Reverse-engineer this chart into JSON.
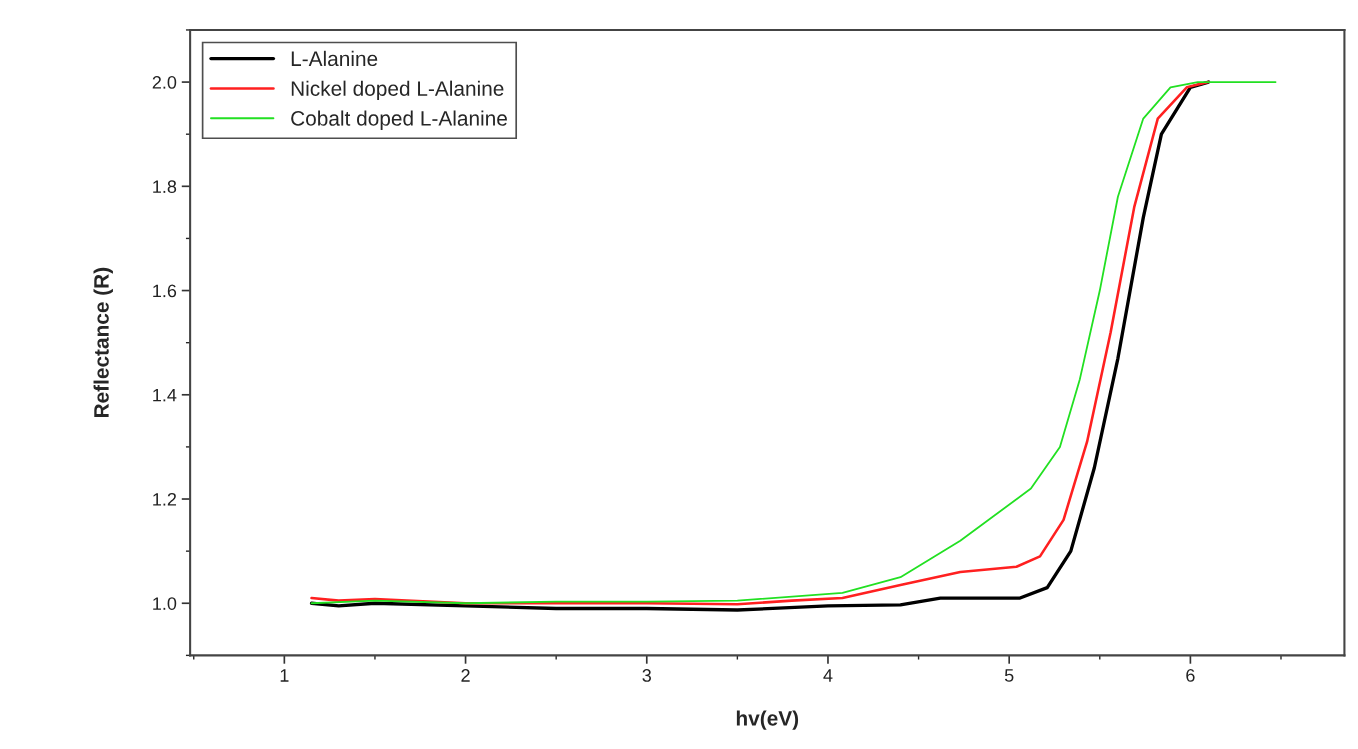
{
  "chart_data": {
    "type": "line",
    "xlabel": "hv(eV)",
    "ylabel": "Reflectance (R)",
    "xlim": [
      0.48,
      6.85
    ],
    "ylim": [
      0.9,
      2.1
    ],
    "xticks": [
      1,
      2,
      3,
      4,
      5,
      6
    ],
    "yticks": [
      {
        "value": 1.0,
        "label": "1.0"
      },
      {
        "value": 1.2,
        "label": "1.2"
      },
      {
        "value": 1.4,
        "label": "1.4"
      },
      {
        "value": 1.6,
        "label": "1.6"
      },
      {
        "value": 1.8,
        "label": "1.8"
      },
      {
        "value": 2.0,
        "label": "2.0"
      }
    ],
    "grid": false,
    "legend": "top left",
    "marker": "none",
    "line_style": "solid",
    "series": [
      {
        "name": "L-Alanine",
        "color": "#000000",
        "x": [
          1.15,
          1.3,
          1.5,
          2,
          2.5,
          3,
          3.5,
          4,
          4.4,
          4.62,
          5.06,
          5.21,
          5.34,
          5.47,
          5.6,
          5.74,
          5.84,
          6.0,
          6.1
        ],
        "values": [
          1.0,
          0.995,
          1.0,
          0.995,
          0.99,
          0.99,
          0.987,
          0.995,
          0.997,
          1.01,
          1.01,
          1.03,
          1.1,
          1.26,
          1.47,
          1.74,
          1.9,
          1.99,
          2.0
        ]
      },
      {
        "name": "Nickel doped L-Alanine",
        "color": "#ff2020",
        "x": [
          1.15,
          1.3,
          1.5,
          2,
          2.5,
          3,
          3.5,
          3.8,
          4.08,
          4.4,
          4.73,
          5.04,
          5.17,
          5.3,
          5.43,
          5.56,
          5.69,
          5.82,
          5.98,
          6.1
        ],
        "values": [
          1.01,
          1.005,
          1.008,
          1.0,
          1.0,
          1.0,
          0.998,
          1.005,
          1.01,
          1.035,
          1.06,
          1.07,
          1.09,
          1.16,
          1.31,
          1.52,
          1.76,
          1.93,
          1.99,
          2.0
        ]
      },
      {
        "name": "Cobalt doped L-Alanine",
        "color": "#22e022",
        "x": [
          1.15,
          1.5,
          2,
          2.5,
          3,
          3.5,
          4.08,
          4.4,
          4.73,
          5.12,
          5.28,
          5.39,
          5.5,
          5.6,
          5.74,
          5.89,
          6.04,
          6.47
        ],
        "values": [
          1.0,
          1.005,
          1.0,
          1.003,
          1.003,
          1.005,
          1.02,
          1.05,
          1.12,
          1.22,
          1.3,
          1.43,
          1.6,
          1.78,
          1.93,
          1.99,
          2.0,
          2.0
        ]
      }
    ]
  }
}
